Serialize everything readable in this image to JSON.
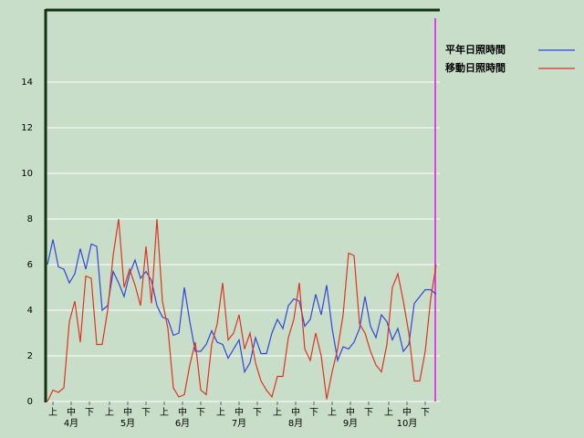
{
  "chart_data": {
    "type": "line",
    "x": [
      0,
      3,
      6,
      9,
      12,
      15,
      18,
      21,
      24,
      27,
      30,
      33,
      36,
      39,
      42,
      45,
      48,
      51,
      54,
      57,
      60,
      63,
      66,
      69,
      72,
      75,
      78,
      81,
      84,
      87,
      90,
      93,
      96,
      99,
      102,
      105,
      108,
      111,
      114,
      117,
      120,
      123,
      126,
      129,
      132,
      135,
      138,
      141,
      144,
      147,
      150,
      153,
      156,
      159,
      162,
      165,
      168,
      171,
      174,
      177,
      180,
      183,
      186,
      189,
      192,
      195,
      198,
      201,
      204,
      207,
      210,
      213
    ],
    "series": [
      {
        "name": "平年日照時間",
        "color": "#3344dd",
        "values": [
          6.0,
          7.1,
          5.9,
          5.8,
          5.2,
          5.6,
          6.7,
          5.8,
          6.9,
          6.8,
          4.0,
          4.2,
          5.7,
          5.2,
          4.6,
          5.6,
          6.2,
          5.4,
          5.7,
          5.3,
          4.2,
          3.7,
          3.6,
          2.9,
          3.0,
          5.0,
          3.5,
          2.2,
          2.2,
          2.5,
          3.1,
          2.6,
          2.5,
          1.9,
          2.3,
          2.7,
          1.3,
          1.7,
          2.8,
          2.1,
          2.1,
          3.0,
          3.6,
          3.2,
          4.2,
          4.5,
          4.4,
          3.3,
          3.6,
          4.7,
          3.8,
          5.1,
          3.2,
          1.8,
          2.4,
          2.3,
          2.6,
          3.2,
          4.6,
          3.3,
          2.8,
          3.8,
          3.5,
          2.7,
          3.2,
          2.2,
          2.5,
          4.3,
          4.6,
          4.9,
          4.9,
          4.7
        ]
      },
      {
        "name": "移動日照時間",
        "color": "#dd3322",
        "values": [
          0.0,
          0.5,
          0.4,
          0.6,
          3.5,
          4.4,
          2.6,
          5.5,
          5.4,
          2.5,
          2.5,
          4.0,
          6.4,
          8.0,
          5.0,
          5.8,
          5.1,
          4.2,
          6.8,
          4.3,
          8.0,
          4.4,
          3.2,
          0.6,
          0.2,
          0.3,
          1.6,
          2.6,
          0.5,
          0.3,
          2.5,
          3.4,
          5.2,
          2.7,
          3.0,
          3.8,
          2.3,
          3.0,
          1.7,
          0.9,
          0.5,
          0.2,
          1.1,
          1.1,
          2.8,
          3.6,
          5.2,
          2.3,
          1.8,
          3.0,
          2.0,
          0.1,
          1.3,
          2.3,
          3.8,
          6.5,
          6.4,
          3.4,
          3.0,
          2.2,
          1.6,
          1.3,
          2.5,
          5.0,
          5.6,
          4.4,
          3.0,
          0.9,
          0.9,
          2.2,
          4.5,
          6.0
        ]
      }
    ],
    "xlim": [
      -1,
      215
    ],
    "ylim": [
      0,
      17.2
    ],
    "yticks": [
      0,
      2,
      4,
      6,
      8,
      10,
      12,
      14
    ],
    "grid": true,
    "xticks": [
      {
        "value": 3,
        "label": "上"
      },
      {
        "value": 13,
        "label": "中"
      },
      {
        "value": 23,
        "label": "下"
      },
      {
        "value": 34,
        "label": "上"
      },
      {
        "value": 44,
        "label": "中"
      },
      {
        "value": 54,
        "label": "下"
      },
      {
        "value": 64,
        "label": "上"
      },
      {
        "value": 74,
        "label": "中"
      },
      {
        "value": 84,
        "label": "下"
      },
      {
        "value": 95,
        "label": "上"
      },
      {
        "value": 105,
        "label": "中"
      },
      {
        "value": 115,
        "label": "下"
      },
      {
        "value": 126,
        "label": "上"
      },
      {
        "value": 136,
        "label": "中"
      },
      {
        "value": 146,
        "label": "下"
      },
      {
        "value": 156,
        "label": "上"
      },
      {
        "value": 166,
        "label": "中"
      },
      {
        "value": 176,
        "label": "下"
      },
      {
        "value": 187,
        "label": "上"
      },
      {
        "value": 197,
        "label": "中"
      },
      {
        "value": 207,
        "label": "下"
      }
    ],
    "month_labels": [
      {
        "value": 13,
        "label": "4月"
      },
      {
        "value": 44,
        "label": "5月"
      },
      {
        "value": 74,
        "label": "6月"
      },
      {
        "value": 105,
        "label": "7月"
      },
      {
        "value": 136,
        "label": "8月"
      },
      {
        "value": 166,
        "label": "9月"
      },
      {
        "value": 197,
        "label": "10月"
      }
    ],
    "legend": "top-right"
  }
}
